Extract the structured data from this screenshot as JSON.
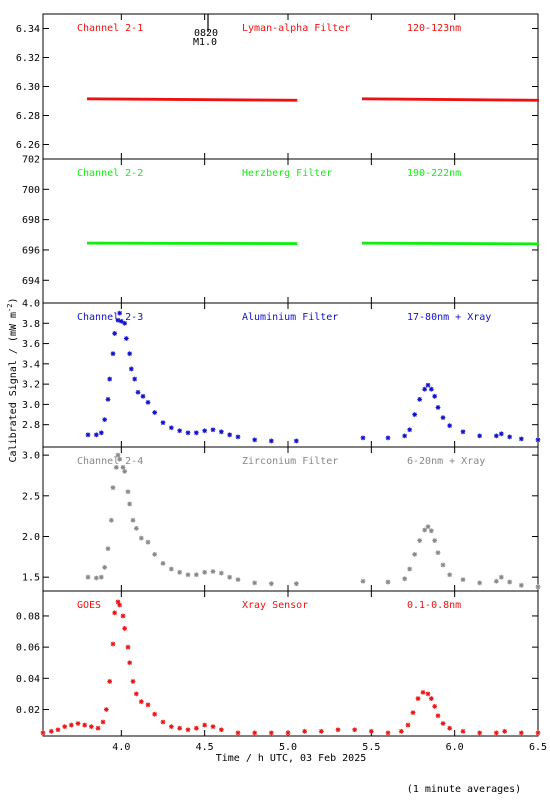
{
  "figure": {
    "ylabel": "Calibrated Signal / (mW m",
    "ylabel_sup": "-2",
    "ylabel_close": ")",
    "xlabel": "Time / h UTC, 03 Feb 2025",
    "footnote": "(1 minute averages)",
    "x_ticks": [
      "4.0",
      "4.5",
      "5.0",
      "5.5",
      "6.0",
      "6.5"
    ],
    "marker": {
      "time_label": "0820",
      "class_label": "M1.0"
    }
  },
  "colors": {
    "red": "#ee1111",
    "green": "#11ee11",
    "blue": "#1111cc",
    "gray": "#888888",
    "axis": "#000000"
  },
  "chart_data": [
    {
      "type": "scatter",
      "name": "Channel 2-1",
      "filter": "Lyman-alpha Filter",
      "band": "120-123nm",
      "color": "#ee1111",
      "ylim": [
        6.25,
        6.35
      ],
      "xlim": [
        3.53,
        6.5
      ],
      "y_ticks": [
        "6.26",
        "6.28",
        "6.30",
        "6.32",
        "6.34"
      ],
      "y_tick_values": [
        6.26,
        6.28,
        6.3,
        6.32,
        6.34
      ],
      "segments": [
        {
          "x": [
            3.8,
            5.05
          ],
          "y": [
            6.2915,
            6.2905
          ]
        },
        {
          "x": [
            5.45,
            6.5
          ],
          "y": [
            6.2915,
            6.2905
          ]
        }
      ]
    },
    {
      "type": "scatter",
      "name": "Channel 2-2",
      "filter": "Herzberg Filter",
      "band": "190-222nm",
      "color": "#11ee11",
      "ylim": [
        692.5,
        702.0
      ],
      "xlim": [
        3.53,
        6.5
      ],
      "y_ticks": [
        "694",
        "696",
        "698",
        "700",
        "702"
      ],
      "y_tick_values": [
        694,
        696,
        698,
        700,
        702
      ],
      "segments": [
        {
          "x": [
            3.8,
            5.05
          ],
          "y": [
            696.45,
            696.42
          ]
        },
        {
          "x": [
            5.45,
            6.5
          ],
          "y": [
            696.45,
            696.4
          ]
        }
      ]
    },
    {
      "type": "scatter",
      "name": "Channel 2-3",
      "filter": "Aluminium Filter",
      "band": "17-80nm + Xray",
      "color": "#1111cc",
      "ylim": [
        2.58,
        4.0
      ],
      "xlim": [
        3.53,
        6.5
      ],
      "y_ticks": [
        "2.8",
        "3.0",
        "3.2",
        "3.4",
        "3.6",
        "3.8",
        "4.0"
      ],
      "y_tick_values": [
        2.8,
        3.0,
        3.2,
        3.4,
        3.6,
        3.8,
        4.0
      ],
      "points": [
        [
          3.8,
          2.7
        ],
        [
          3.85,
          2.7
        ],
        [
          3.88,
          2.72
        ],
        [
          3.9,
          2.85
        ],
        [
          3.92,
          3.05
        ],
        [
          3.93,
          3.25
        ],
        [
          3.95,
          3.5
        ],
        [
          3.96,
          3.7
        ],
        [
          3.98,
          3.83
        ],
        [
          3.99,
          3.9
        ],
        [
          4.0,
          3.82
        ],
        [
          4.02,
          3.8
        ],
        [
          4.03,
          3.65
        ],
        [
          4.05,
          3.5
        ],
        [
          4.06,
          3.35
        ],
        [
          4.08,
          3.25
        ],
        [
          4.1,
          3.12
        ],
        [
          4.13,
          3.08
        ],
        [
          4.16,
          3.02
        ],
        [
          4.2,
          2.92
        ],
        [
          4.25,
          2.82
        ],
        [
          4.3,
          2.77
        ],
        [
          4.35,
          2.74
        ],
        [
          4.4,
          2.72
        ],
        [
          4.45,
          2.72
        ],
        [
          4.5,
          2.74
        ],
        [
          4.55,
          2.75
        ],
        [
          4.6,
          2.73
        ],
        [
          4.65,
          2.7
        ],
        [
          4.7,
          2.68
        ],
        [
          4.8,
          2.65
        ],
        [
          4.9,
          2.64
        ],
        [
          5.05,
          2.64
        ],
        [
          5.45,
          2.67
        ],
        [
          5.6,
          2.67
        ],
        [
          5.7,
          2.69
        ],
        [
          5.73,
          2.75
        ],
        [
          5.76,
          2.9
        ],
        [
          5.79,
          3.05
        ],
        [
          5.82,
          3.15
        ],
        [
          5.84,
          3.19
        ],
        [
          5.86,
          3.15
        ],
        [
          5.88,
          3.08
        ],
        [
          5.9,
          2.97
        ],
        [
          5.93,
          2.87
        ],
        [
          5.97,
          2.79
        ],
        [
          6.05,
          2.73
        ],
        [
          6.15,
          2.69
        ],
        [
          6.25,
          2.69
        ],
        [
          6.28,
          2.71
        ],
        [
          6.33,
          2.68
        ],
        [
          6.4,
          2.66
        ],
        [
          6.5,
          2.65
        ]
      ]
    },
    {
      "type": "scatter",
      "name": "Channel 2-4",
      "filter": "Zirconium Filter",
      "band": "6-20nm + Xray",
      "color": "#888888",
      "ylim": [
        1.33,
        3.1
      ],
      "xlim": [
        3.53,
        6.5
      ],
      "y_ticks": [
        "1.5",
        "2.0",
        "2.5",
        "3.0"
      ],
      "y_tick_values": [
        1.5,
        2.0,
        2.5,
        3.0
      ],
      "points": [
        [
          3.8,
          1.5
        ],
        [
          3.85,
          1.49
        ],
        [
          3.88,
          1.5
        ],
        [
          3.9,
          1.62
        ],
        [
          3.92,
          1.85
        ],
        [
          3.94,
          2.2
        ],
        [
          3.95,
          2.6
        ],
        [
          3.97,
          2.85
        ],
        [
          3.98,
          3.0
        ],
        [
          3.99,
          2.95
        ],
        [
          4.01,
          2.85
        ],
        [
          4.02,
          2.8
        ],
        [
          4.04,
          2.55
        ],
        [
          4.05,
          2.4
        ],
        [
          4.07,
          2.2
        ],
        [
          4.09,
          2.1
        ],
        [
          4.12,
          1.98
        ],
        [
          4.16,
          1.93
        ],
        [
          4.2,
          1.78
        ],
        [
          4.25,
          1.67
        ],
        [
          4.3,
          1.6
        ],
        [
          4.35,
          1.56
        ],
        [
          4.4,
          1.53
        ],
        [
          4.45,
          1.53
        ],
        [
          4.5,
          1.56
        ],
        [
          4.55,
          1.57
        ],
        [
          4.6,
          1.55
        ],
        [
          4.65,
          1.5
        ],
        [
          4.7,
          1.47
        ],
        [
          4.8,
          1.43
        ],
        [
          4.9,
          1.42
        ],
        [
          5.05,
          1.42
        ],
        [
          5.45,
          1.45
        ],
        [
          5.6,
          1.44
        ],
        [
          5.7,
          1.48
        ],
        [
          5.73,
          1.6
        ],
        [
          5.76,
          1.78
        ],
        [
          5.79,
          1.95
        ],
        [
          5.82,
          2.08
        ],
        [
          5.84,
          2.12
        ],
        [
          5.86,
          2.07
        ],
        [
          5.88,
          1.95
        ],
        [
          5.9,
          1.8
        ],
        [
          5.93,
          1.65
        ],
        [
          5.97,
          1.53
        ],
        [
          6.05,
          1.47
        ],
        [
          6.15,
          1.43
        ],
        [
          6.25,
          1.45
        ],
        [
          6.28,
          1.5
        ],
        [
          6.33,
          1.44
        ],
        [
          6.4,
          1.4
        ],
        [
          6.5,
          1.38
        ]
      ]
    },
    {
      "type": "scatter",
      "name": "GOES",
      "filter": "Xray Sensor",
      "band": "0.1-0.8nm",
      "color": "#ee1111",
      "ylim": [
        0.003,
        0.096
      ],
      "xlim": [
        3.53,
        6.5
      ],
      "y_ticks": [
        "0.02",
        "0.04",
        "0.06",
        "0.08"
      ],
      "y_tick_values": [
        0.02,
        0.04,
        0.06,
        0.08
      ],
      "points": [
        [
          3.53,
          0.005
        ],
        [
          3.58,
          0.006
        ],
        [
          3.62,
          0.007
        ],
        [
          3.66,
          0.009
        ],
        [
          3.7,
          0.01
        ],
        [
          3.74,
          0.011
        ],
        [
          3.78,
          0.01
        ],
        [
          3.82,
          0.009
        ],
        [
          3.86,
          0.008
        ],
        [
          3.89,
          0.012
        ],
        [
          3.91,
          0.02
        ],
        [
          3.93,
          0.038
        ],
        [
          3.95,
          0.062
        ],
        [
          3.96,
          0.082
        ],
        [
          3.98,
          0.089
        ],
        [
          3.99,
          0.087
        ],
        [
          4.01,
          0.08
        ],
        [
          4.02,
          0.072
        ],
        [
          4.04,
          0.06
        ],
        [
          4.05,
          0.05
        ],
        [
          4.07,
          0.038
        ],
        [
          4.09,
          0.03
        ],
        [
          4.12,
          0.025
        ],
        [
          4.16,
          0.023
        ],
        [
          4.2,
          0.017
        ],
        [
          4.25,
          0.012
        ],
        [
          4.3,
          0.009
        ],
        [
          4.35,
          0.008
        ],
        [
          4.4,
          0.007
        ],
        [
          4.45,
          0.008
        ],
        [
          4.5,
          0.01
        ],
        [
          4.55,
          0.009
        ],
        [
          4.6,
          0.007
        ],
        [
          4.7,
          0.005
        ],
        [
          4.8,
          0.005
        ],
        [
          4.9,
          0.005
        ],
        [
          5.0,
          0.005
        ],
        [
          5.1,
          0.006
        ],
        [
          5.2,
          0.006
        ],
        [
          5.3,
          0.007
        ],
        [
          5.4,
          0.007
        ],
        [
          5.5,
          0.006
        ],
        [
          5.6,
          0.005
        ],
        [
          5.68,
          0.006
        ],
        [
          5.72,
          0.01
        ],
        [
          5.75,
          0.018
        ],
        [
          5.78,
          0.027
        ],
        [
          5.81,
          0.031
        ],
        [
          5.84,
          0.03
        ],
        [
          5.86,
          0.027
        ],
        [
          5.88,
          0.022
        ],
        [
          5.9,
          0.016
        ],
        [
          5.93,
          0.011
        ],
        [
          5.97,
          0.008
        ],
        [
          6.05,
          0.006
        ],
        [
          6.15,
          0.005
        ],
        [
          6.25,
          0.005
        ],
        [
          6.3,
          0.006
        ],
        [
          6.4,
          0.005
        ],
        [
          6.5,
          0.005
        ]
      ]
    }
  ]
}
